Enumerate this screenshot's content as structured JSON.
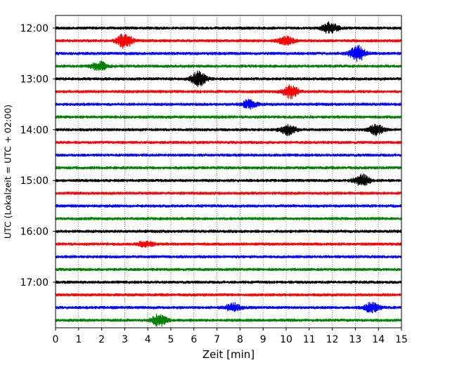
{
  "chart_data": {
    "type": "line",
    "title": "",
    "xlabel": "Zeit  [min]",
    "ylabel": "UTC (Lokalzeit = UTC + 02:00)",
    "xlim": [
      0,
      15
    ],
    "xticks": [
      "0",
      "1",
      "2",
      "3",
      "4",
      "5",
      "6",
      "7",
      "8",
      "9",
      "10",
      "11",
      "12",
      "13",
      "14",
      "15"
    ],
    "ytick_labels": [
      "12:00",
      "13:00",
      "14:00",
      "15:00",
      "16:00",
      "17:00"
    ],
    "grid": "vertical dotted at each minute",
    "trace_interval_min": 15,
    "trace_colors": [
      "#000000",
      "#ff0000",
      "#0000ff",
      "#008000"
    ],
    "traces": [
      {
        "start": "12:00",
        "color": "black",
        "bursts": [
          {
            "t": 11.9,
            "amp": 8
          }
        ]
      },
      {
        "start": "12:15",
        "color": "red",
        "bursts": [
          {
            "t": 3.0,
            "amp": 10
          },
          {
            "t": 10.0,
            "amp": 6
          }
        ]
      },
      {
        "start": "12:30",
        "color": "blue",
        "bursts": [
          {
            "t": 13.1,
            "amp": 11
          }
        ]
      },
      {
        "start": "12:45",
        "color": "green",
        "bursts": [
          {
            "t": 1.9,
            "amp": 6
          }
        ]
      },
      {
        "start": "13:00",
        "color": "black",
        "bursts": [
          {
            "t": 6.2,
            "amp": 10
          }
        ]
      },
      {
        "start": "13:15",
        "color": "red",
        "bursts": [
          {
            "t": 10.2,
            "amp": 9
          }
        ]
      },
      {
        "start": "13:30",
        "color": "blue",
        "bursts": [
          {
            "t": 8.4,
            "amp": 6
          }
        ]
      },
      {
        "start": "13:45",
        "color": "green",
        "bursts": []
      },
      {
        "start": "14:00",
        "color": "black",
        "bursts": [
          {
            "t": 10.1,
            "amp": 7
          },
          {
            "t": 13.9,
            "amp": 7
          }
        ]
      },
      {
        "start": "14:15",
        "color": "red",
        "bursts": []
      },
      {
        "start": "14:30",
        "color": "blue",
        "bursts": []
      },
      {
        "start": "14:45",
        "color": "green",
        "bursts": []
      },
      {
        "start": "15:00",
        "color": "black",
        "bursts": [
          {
            "t": 13.3,
            "amp": 8
          }
        ]
      },
      {
        "start": "15:15",
        "color": "red",
        "bursts": []
      },
      {
        "start": "15:30",
        "color": "blue",
        "bursts": []
      },
      {
        "start": "15:45",
        "color": "green",
        "bursts": []
      },
      {
        "start": "16:00",
        "color": "black",
        "bursts": []
      },
      {
        "start": "16:15",
        "color": "red",
        "bursts": [
          {
            "t": 3.9,
            "amp": 4
          }
        ]
      },
      {
        "start": "16:30",
        "color": "blue",
        "bursts": []
      },
      {
        "start": "16:45",
        "color": "green",
        "bursts": []
      },
      {
        "start": "17:00",
        "color": "black",
        "bursts": []
      },
      {
        "start": "17:15",
        "color": "red",
        "bursts": []
      },
      {
        "start": "17:30",
        "color": "blue",
        "bursts": [
          {
            "t": 7.7,
            "amp": 6
          },
          {
            "t": 13.7,
            "amp": 7
          }
        ]
      },
      {
        "start": "17:45",
        "color": "green",
        "bursts": [
          {
            "t": 4.5,
            "amp": 8
          }
        ]
      }
    ]
  }
}
